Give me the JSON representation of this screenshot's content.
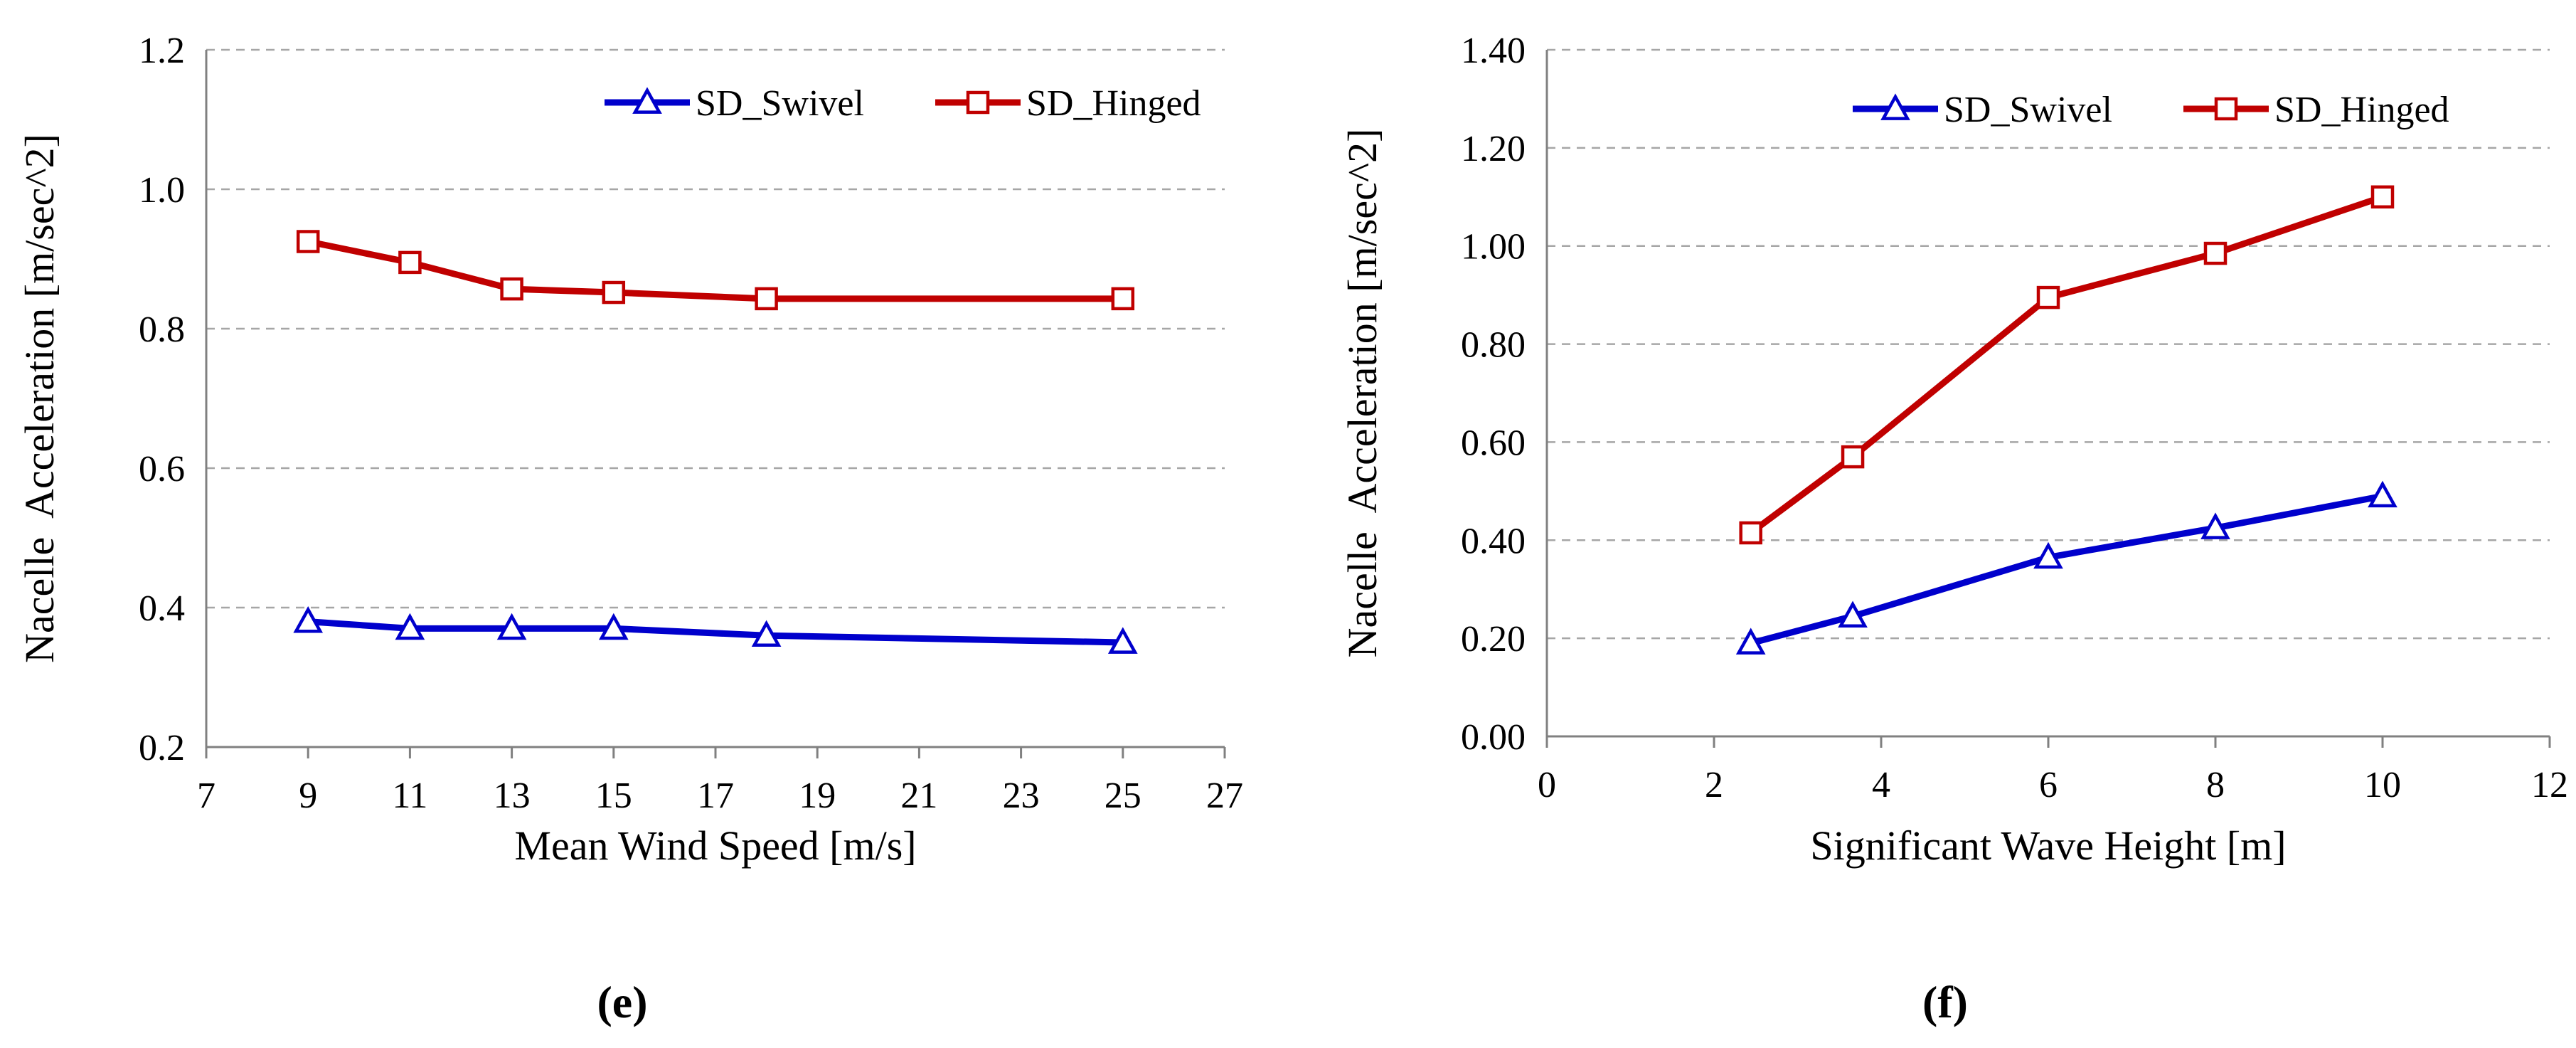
{
  "chart_data": [
    {
      "type": "line",
      "panel_label": "(e)",
      "xlabel": "Mean Wind Speed [m/s]",
      "ylabel": "Nacelle  Acceleration [m/sec^2]",
      "xlim": [
        7,
        27
      ],
      "ylim": [
        0.2,
        1.2
      ],
      "xticks": [
        7,
        9,
        11,
        13,
        15,
        17,
        19,
        21,
        23,
        25,
        27
      ],
      "yticks": [
        0.2,
        0.4,
        0.6,
        0.8,
        1.0,
        1.2
      ],
      "ytick_labels": [
        "0.2",
        "0.4",
        "0.6",
        "0.8",
        "1.0",
        "1.2"
      ],
      "grid": "horizontal dashed",
      "legend_position": "top-right",
      "series": [
        {
          "name": "SD_Swivel",
          "color": "#0000cc",
          "marker": "triangle",
          "x": [
            9,
            11,
            13,
            15,
            18,
            25
          ],
          "y": [
            0.38,
            0.37,
            0.37,
            0.37,
            0.36,
            0.35
          ]
        },
        {
          "name": "SD_Hinged",
          "color": "#c00000",
          "marker": "square",
          "x": [
            9,
            11,
            13,
            15,
            18,
            25
          ],
          "y": [
            0.925,
            0.895,
            0.857,
            0.852,
            0.843,
            0.843
          ]
        }
      ]
    },
    {
      "type": "line",
      "panel_label": "(f)",
      "xlabel": "Significant Wave Height  [m]",
      "ylabel": "Nacelle  Acceleration [m/sec^2]",
      "xlim": [
        0,
        12
      ],
      "ylim": [
        0,
        1.4
      ],
      "xticks": [
        0,
        2,
        4,
        6,
        8,
        10,
        12
      ],
      "yticks": [
        0,
        0.2,
        0.4,
        0.6,
        0.8,
        1.0,
        1.2,
        1.4
      ],
      "ytick_labels": [
        "0.00",
        "0.20",
        "0.40",
        "0.60",
        "0.80",
        "1.00",
        "1.20",
        "1.40"
      ],
      "grid": "horizontal dashed",
      "legend_position": "top-right",
      "series": [
        {
          "name": "SD_Swivel",
          "color": "#0000cc",
          "marker": "triangle",
          "x": [
            2.44,
            3.66,
            6,
            8,
            10
          ],
          "y": [
            0.19,
            0.245,
            0.365,
            0.425,
            0.49
          ]
        },
        {
          "name": "SD_Hinged",
          "color": "#c00000",
          "marker": "square",
          "x": [
            2.44,
            3.66,
            6,
            8,
            10
          ],
          "y": [
            0.415,
            0.57,
            0.895,
            0.985,
            1.1
          ]
        }
      ]
    }
  ]
}
